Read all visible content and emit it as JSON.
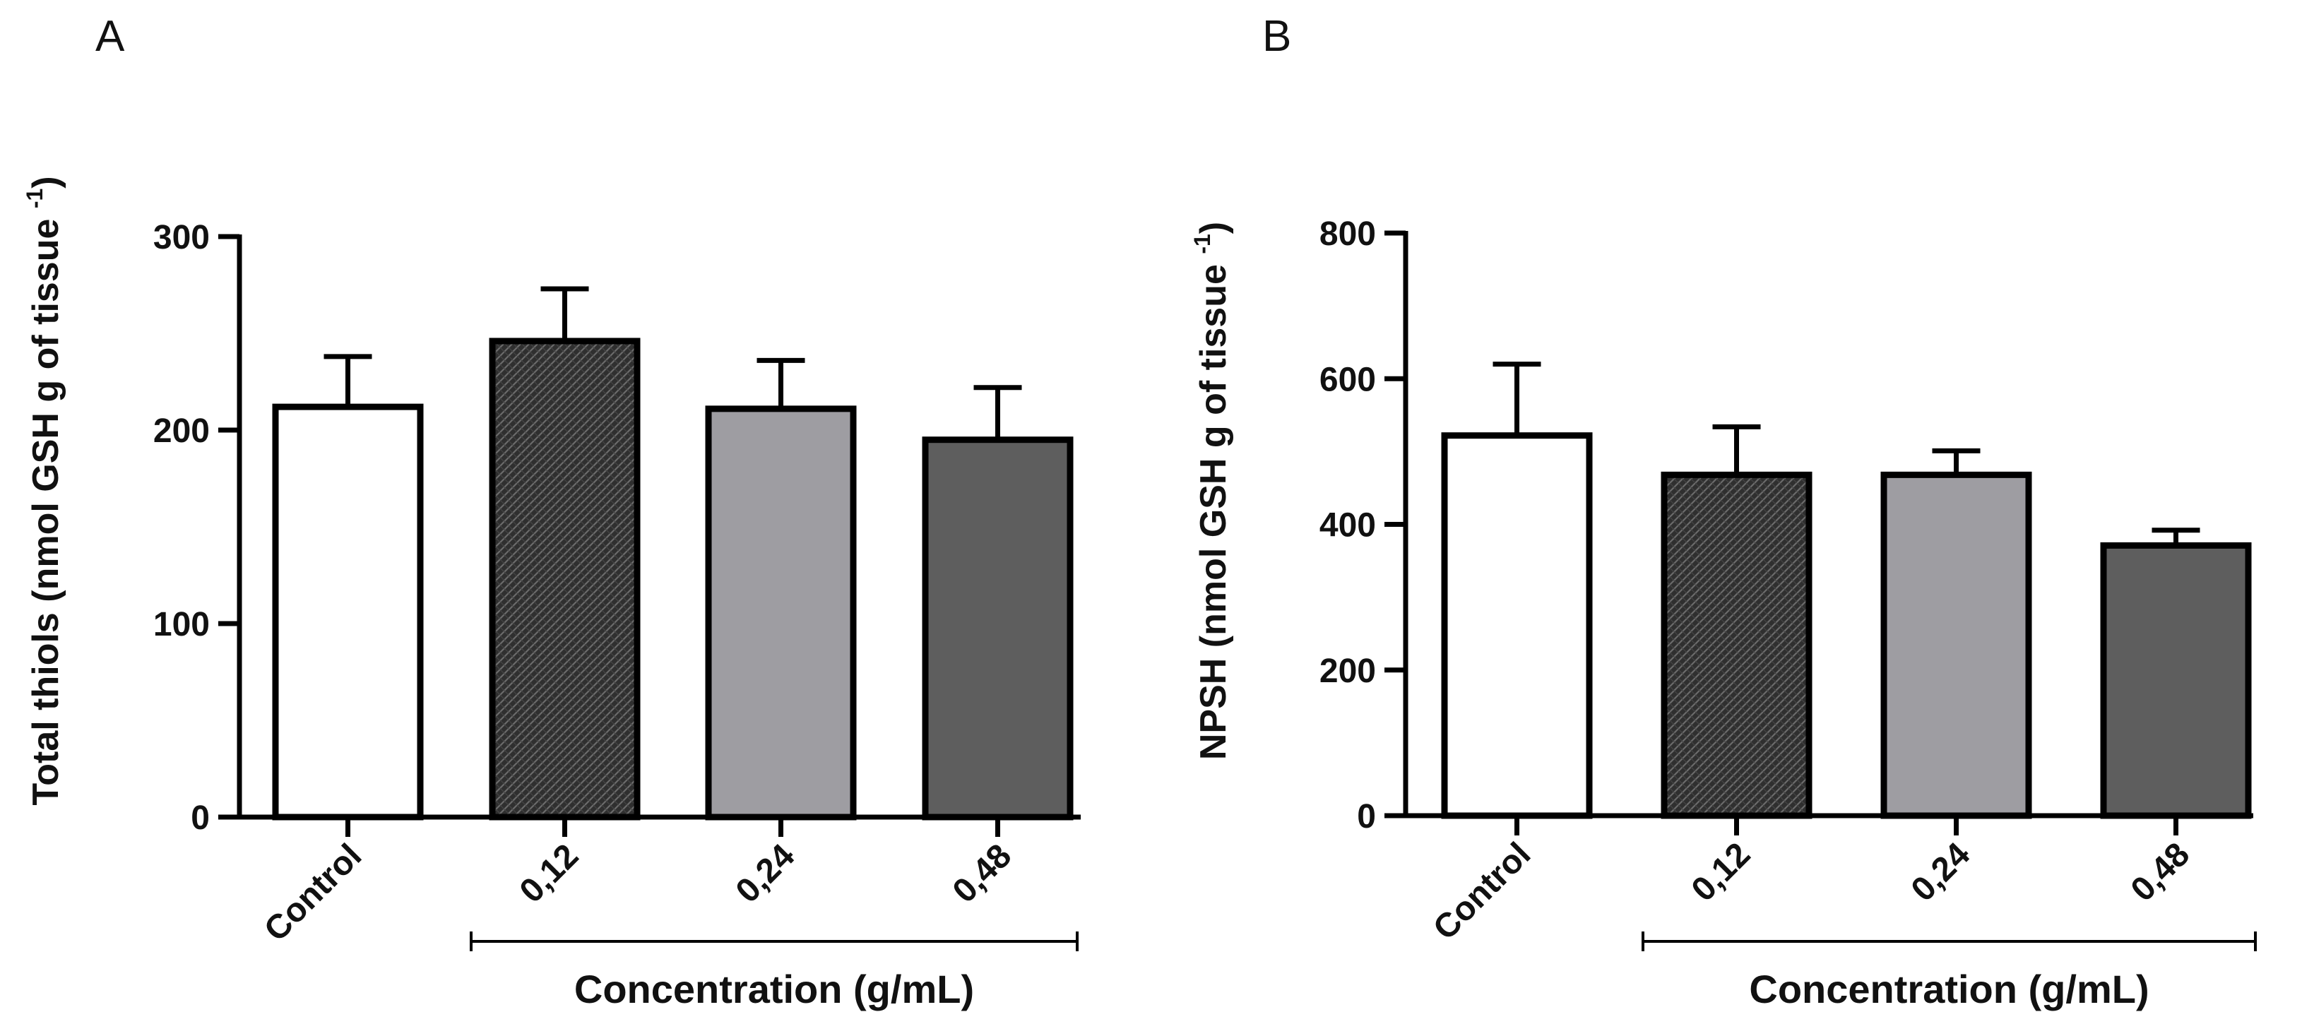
{
  "chart_data": [
    {
      "type": "bar",
      "panel_label": "A",
      "title": "",
      "xlabel": "",
      "ylabel": "Total thiols (nmol GSH g of tissue ",
      "ylabel_superscript": "-1",
      "ylabel_close": ")",
      "categories": [
        "Control",
        "0,12",
        "0,24",
        "0,48"
      ],
      "values": [
        212,
        246,
        211,
        195
      ],
      "errors": [
        26,
        27,
        25,
        27
      ],
      "fills": [
        "white",
        "crosshatch",
        "light-gray",
        "dark-gray"
      ],
      "ylim": [
        0,
        300
      ],
      "yticks": [
        0,
        100,
        200,
        300
      ],
      "group_bracket": {
        "label": "Concentration (g/mL)",
        "from": "0,12",
        "to": "0,48"
      }
    },
    {
      "type": "bar",
      "panel_label": "B",
      "title": "",
      "xlabel": "",
      "ylabel": "NPSH (nmol GSH g of tissue ",
      "ylabel_superscript": "-1",
      "ylabel_close": ")",
      "categories": [
        "Control",
        "0,12",
        "0,24",
        "0,48"
      ],
      "values": [
        522,
        468,
        468,
        371
      ],
      "errors": [
        98,
        66,
        33,
        21
      ],
      "fills": [
        "white",
        "crosshatch",
        "light-gray",
        "dark-gray"
      ],
      "ylim": [
        0,
        800
      ],
      "yticks": [
        0,
        200,
        400,
        600,
        800
      ],
      "group_bracket": {
        "label": "Concentration (g/mL)",
        "from": "0,12",
        "to": "0,48"
      }
    }
  ],
  "colors": {
    "axis": "#000000",
    "white": "#ffffff",
    "light-gray": "#9e9da2",
    "dark-gray": "#5e5e5e",
    "crosshatch-bg": "#2f2f2f",
    "crosshatch-line": "#6b6b6b"
  }
}
